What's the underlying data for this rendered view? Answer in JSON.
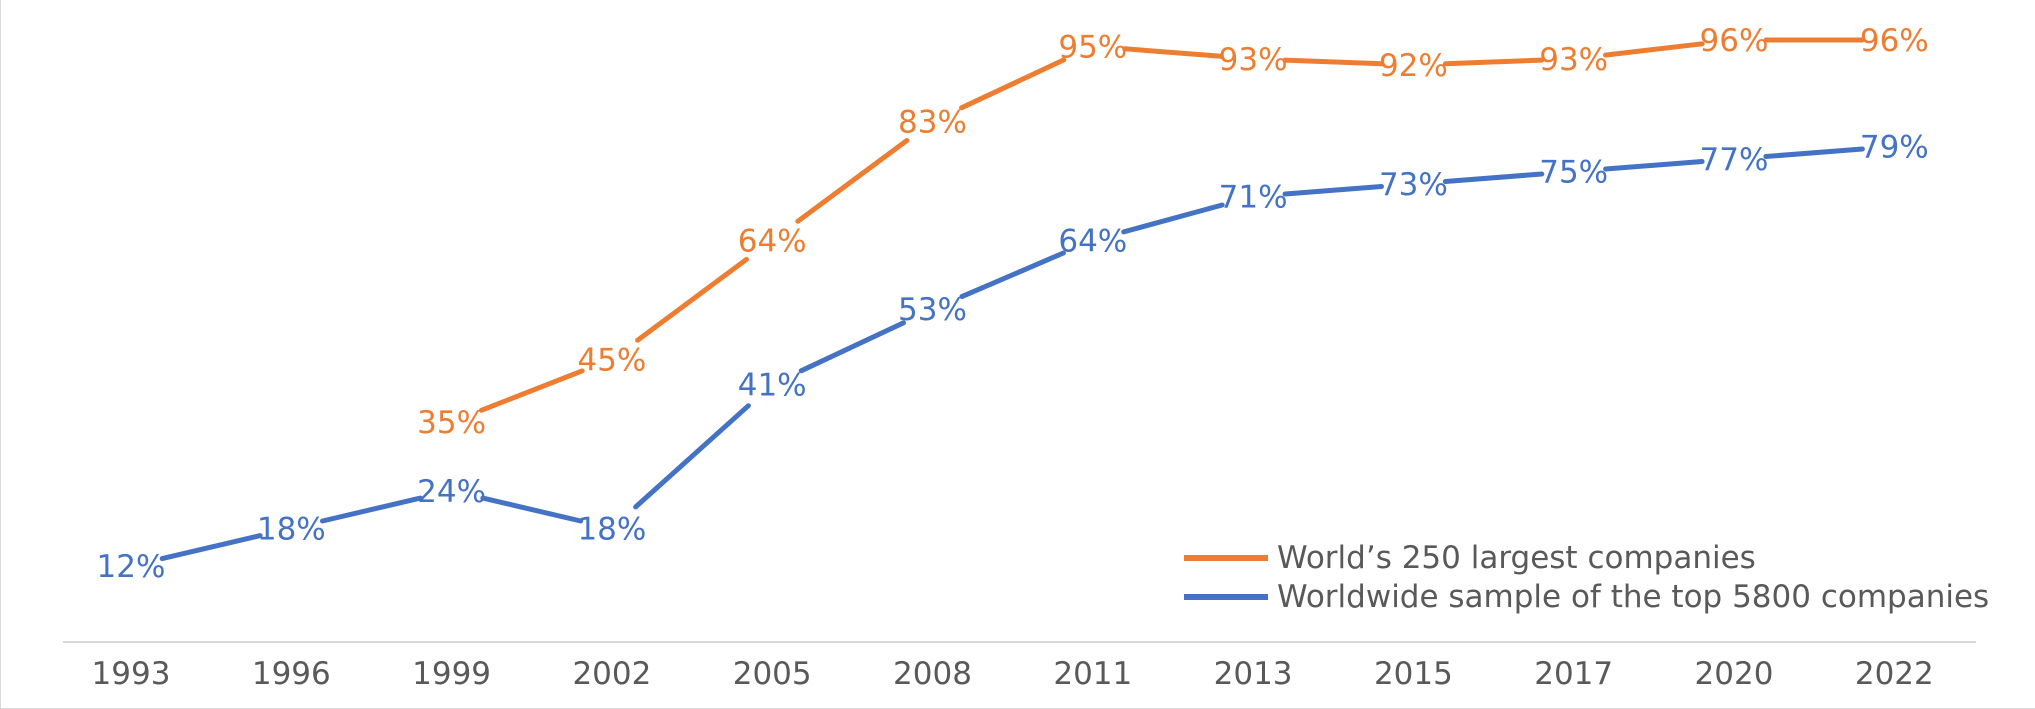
{
  "chart_data": {
    "type": "line",
    "title": "",
    "xlabel": "",
    "ylabel": "",
    "categories": [
      "1993",
      "1996",
      "1999",
      "2002",
      "2005",
      "2008",
      "2011",
      "2013",
      "2015",
      "2017",
      "2020",
      "2022"
    ],
    "ylim": [
      0,
      100
    ],
    "grid": false,
    "legend_position": "bottom-right",
    "series": [
      {
        "name": "World’s 250 largest companies",
        "color": "#ED7D31",
        "values": [
          null,
          null,
          35,
          45,
          64,
          83,
          95,
          93,
          92,
          93,
          96,
          96
        ],
        "labels": [
          null,
          null,
          "35%",
          "45%",
          "64%",
          "83%",
          "95%",
          "93%",
          "92%",
          "93%",
          "96%",
          "96%"
        ]
      },
      {
        "name": "Worldwide sample of the top 5800 companies",
        "color": "#4472C4",
        "values": [
          12,
          18,
          24,
          18,
          41,
          53,
          64,
          71,
          73,
          75,
          77,
          79
        ],
        "labels": [
          "12%",
          "18%",
          "24%",
          "18%",
          "41%",
          "53%",
          "64%",
          "71%",
          "73%",
          "75%",
          "77%",
          "79%"
        ]
      }
    ]
  }
}
